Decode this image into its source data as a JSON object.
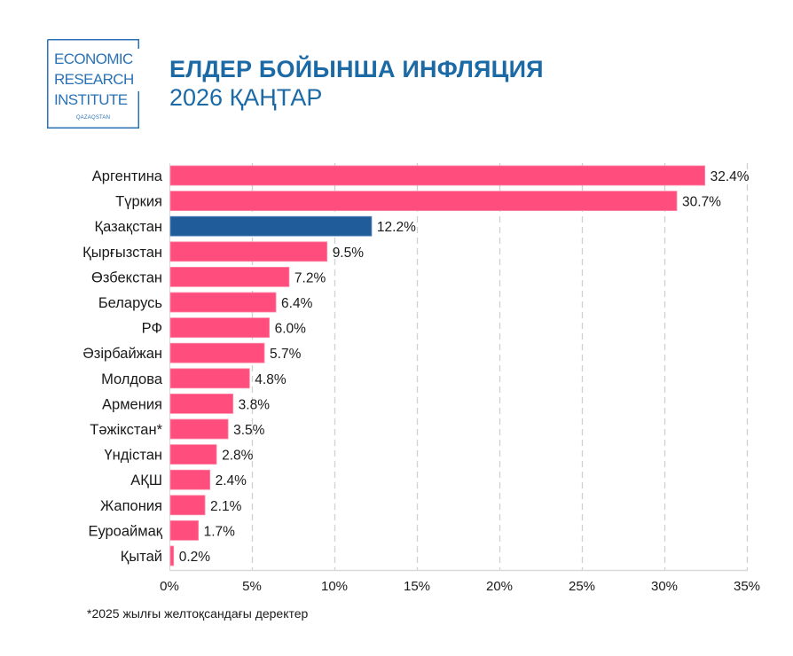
{
  "header": {
    "logo": {
      "line1": "ECONOMIC",
      "line2": "RESEARCH",
      "line3": "INSTITUTE",
      "sub": "QAZAQSTAN"
    },
    "title": "ЕЛДЕР БОЙЫНША ИНФЛЯЦИЯ",
    "subtitle": "2026 ҚАҢТАР"
  },
  "footnote": "*2025 жылғы желтоқсандағы деректер",
  "colors": {
    "default_bar": "#ff4d7d",
    "highlight_bar": "#1f5c99",
    "title": "#1b6aa5",
    "grid": "#d0d0d0"
  },
  "chart_data": {
    "type": "bar",
    "orientation": "horizontal",
    "title": "ЕЛДЕР БОЙЫНША ИНФЛЯЦИЯ",
    "subtitle": "2026 ҚАҢТАР",
    "xlabel": "",
    "ylabel": "",
    "xlim": [
      0,
      35
    ],
    "x_ticks": [
      0,
      5,
      10,
      15,
      20,
      25,
      30,
      35
    ],
    "x_tick_labels": [
      "0%",
      "5%",
      "10%",
      "15%",
      "20%",
      "25%",
      "30%",
      "35%"
    ],
    "grid": "vertical dashed",
    "legend": "none",
    "highlight": "Қазақстан",
    "categories": [
      "Аргентина",
      "Түркия",
      "Қазақстан",
      "Қырғызстан",
      "Өзбекстан",
      "Беларусь",
      "РФ",
      "Әзірбайжан",
      "Молдова",
      "Армения",
      "Тәжікстан*",
      "Үндістан",
      "АҚШ",
      "Жапония",
      "Еуроаймақ",
      "Қытай"
    ],
    "values": [
      32.4,
      30.7,
      12.2,
      9.5,
      7.2,
      6.4,
      6.0,
      5.7,
      4.8,
      3.8,
      3.5,
      2.8,
      2.4,
      2.1,
      1.7,
      0.2
    ],
    "value_labels": [
      "32.4%",
      "30.7%",
      "12.2%",
      "9.5%",
      "7.2%",
      "6.4%",
      "6.0%",
      "5.7%",
      "4.8%",
      "3.8%",
      "3.5%",
      "2.8%",
      "2.4%",
      "2.1%",
      "1.7%",
      "0.2%"
    ],
    "unit": "%"
  }
}
